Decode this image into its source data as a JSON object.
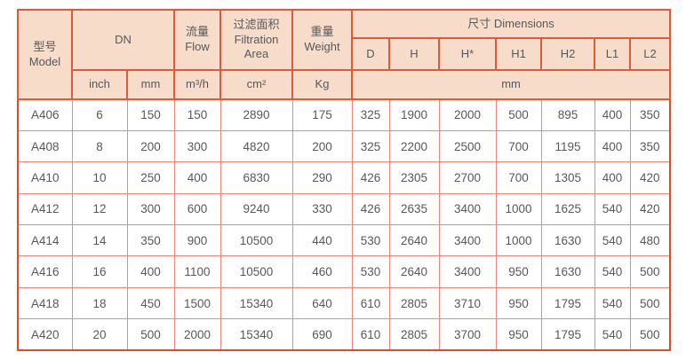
{
  "table": {
    "header": {
      "model": "型号\nModel",
      "dn": "DN",
      "flow": "流量\nFlow",
      "filtration_area": "过滤面积\nFiltration\nArea",
      "weight": "重量\nWeight",
      "dimensions": "尺寸 Dimensions",
      "dimension_columns": [
        "D",
        "H",
        "H*",
        "H1",
        "H2",
        "L1",
        "L2"
      ]
    },
    "units": {
      "dn_inch": "inch",
      "dn_mm": "mm",
      "flow": "m³/h",
      "filtration_area": "cm²",
      "weight": "Kg",
      "dimensions": "mm"
    },
    "rows": [
      {
        "model": "A406",
        "values": [
          "6",
          "150",
          "150",
          "2890",
          "175",
          "325",
          "1900",
          "2000",
          "500",
          "895",
          "400",
          "350"
        ]
      },
      {
        "model": "A408",
        "values": [
          "8",
          "200",
          "300",
          "4820",
          "200",
          "325",
          "2200",
          "2500",
          "700",
          "1195",
          "400",
          "350"
        ]
      },
      {
        "model": "A410",
        "values": [
          "10",
          "250",
          "400",
          "6830",
          "290",
          "426",
          "2305",
          "2700",
          "700",
          "1305",
          "400",
          "420"
        ]
      },
      {
        "model": "A412",
        "values": [
          "12",
          "300",
          "600",
          "9240",
          "330",
          "426",
          "2635",
          "3400",
          "1000",
          "1625",
          "540",
          "420"
        ]
      },
      {
        "model": "A414",
        "values": [
          "14",
          "350",
          "900",
          "10500",
          "440",
          "530",
          "2640",
          "3400",
          "1000",
          "1630",
          "540",
          "480"
        ]
      },
      {
        "model": "A416",
        "values": [
          "16",
          "400",
          "1100",
          "10500",
          "460",
          "530",
          "2640",
          "3400",
          "950",
          "1630",
          "540",
          "500"
        ]
      },
      {
        "model": "A418",
        "values": [
          "18",
          "450",
          "1500",
          "15340",
          "640",
          "610",
          "2805",
          "3710",
          "950",
          "1795",
          "540",
          "500"
        ]
      },
      {
        "model": "A420",
        "values": [
          "20",
          "500",
          "2000",
          "15340",
          "690",
          "610",
          "2805",
          "3700",
          "950",
          "1795",
          "540",
          "500"
        ]
      }
    ]
  },
  "colors": {
    "header_bg": "#f6dcc9",
    "header_border": "#e0593a",
    "outer_border": "#dc4e28",
    "data_border": "#ee877c",
    "text": "#57585a"
  }
}
